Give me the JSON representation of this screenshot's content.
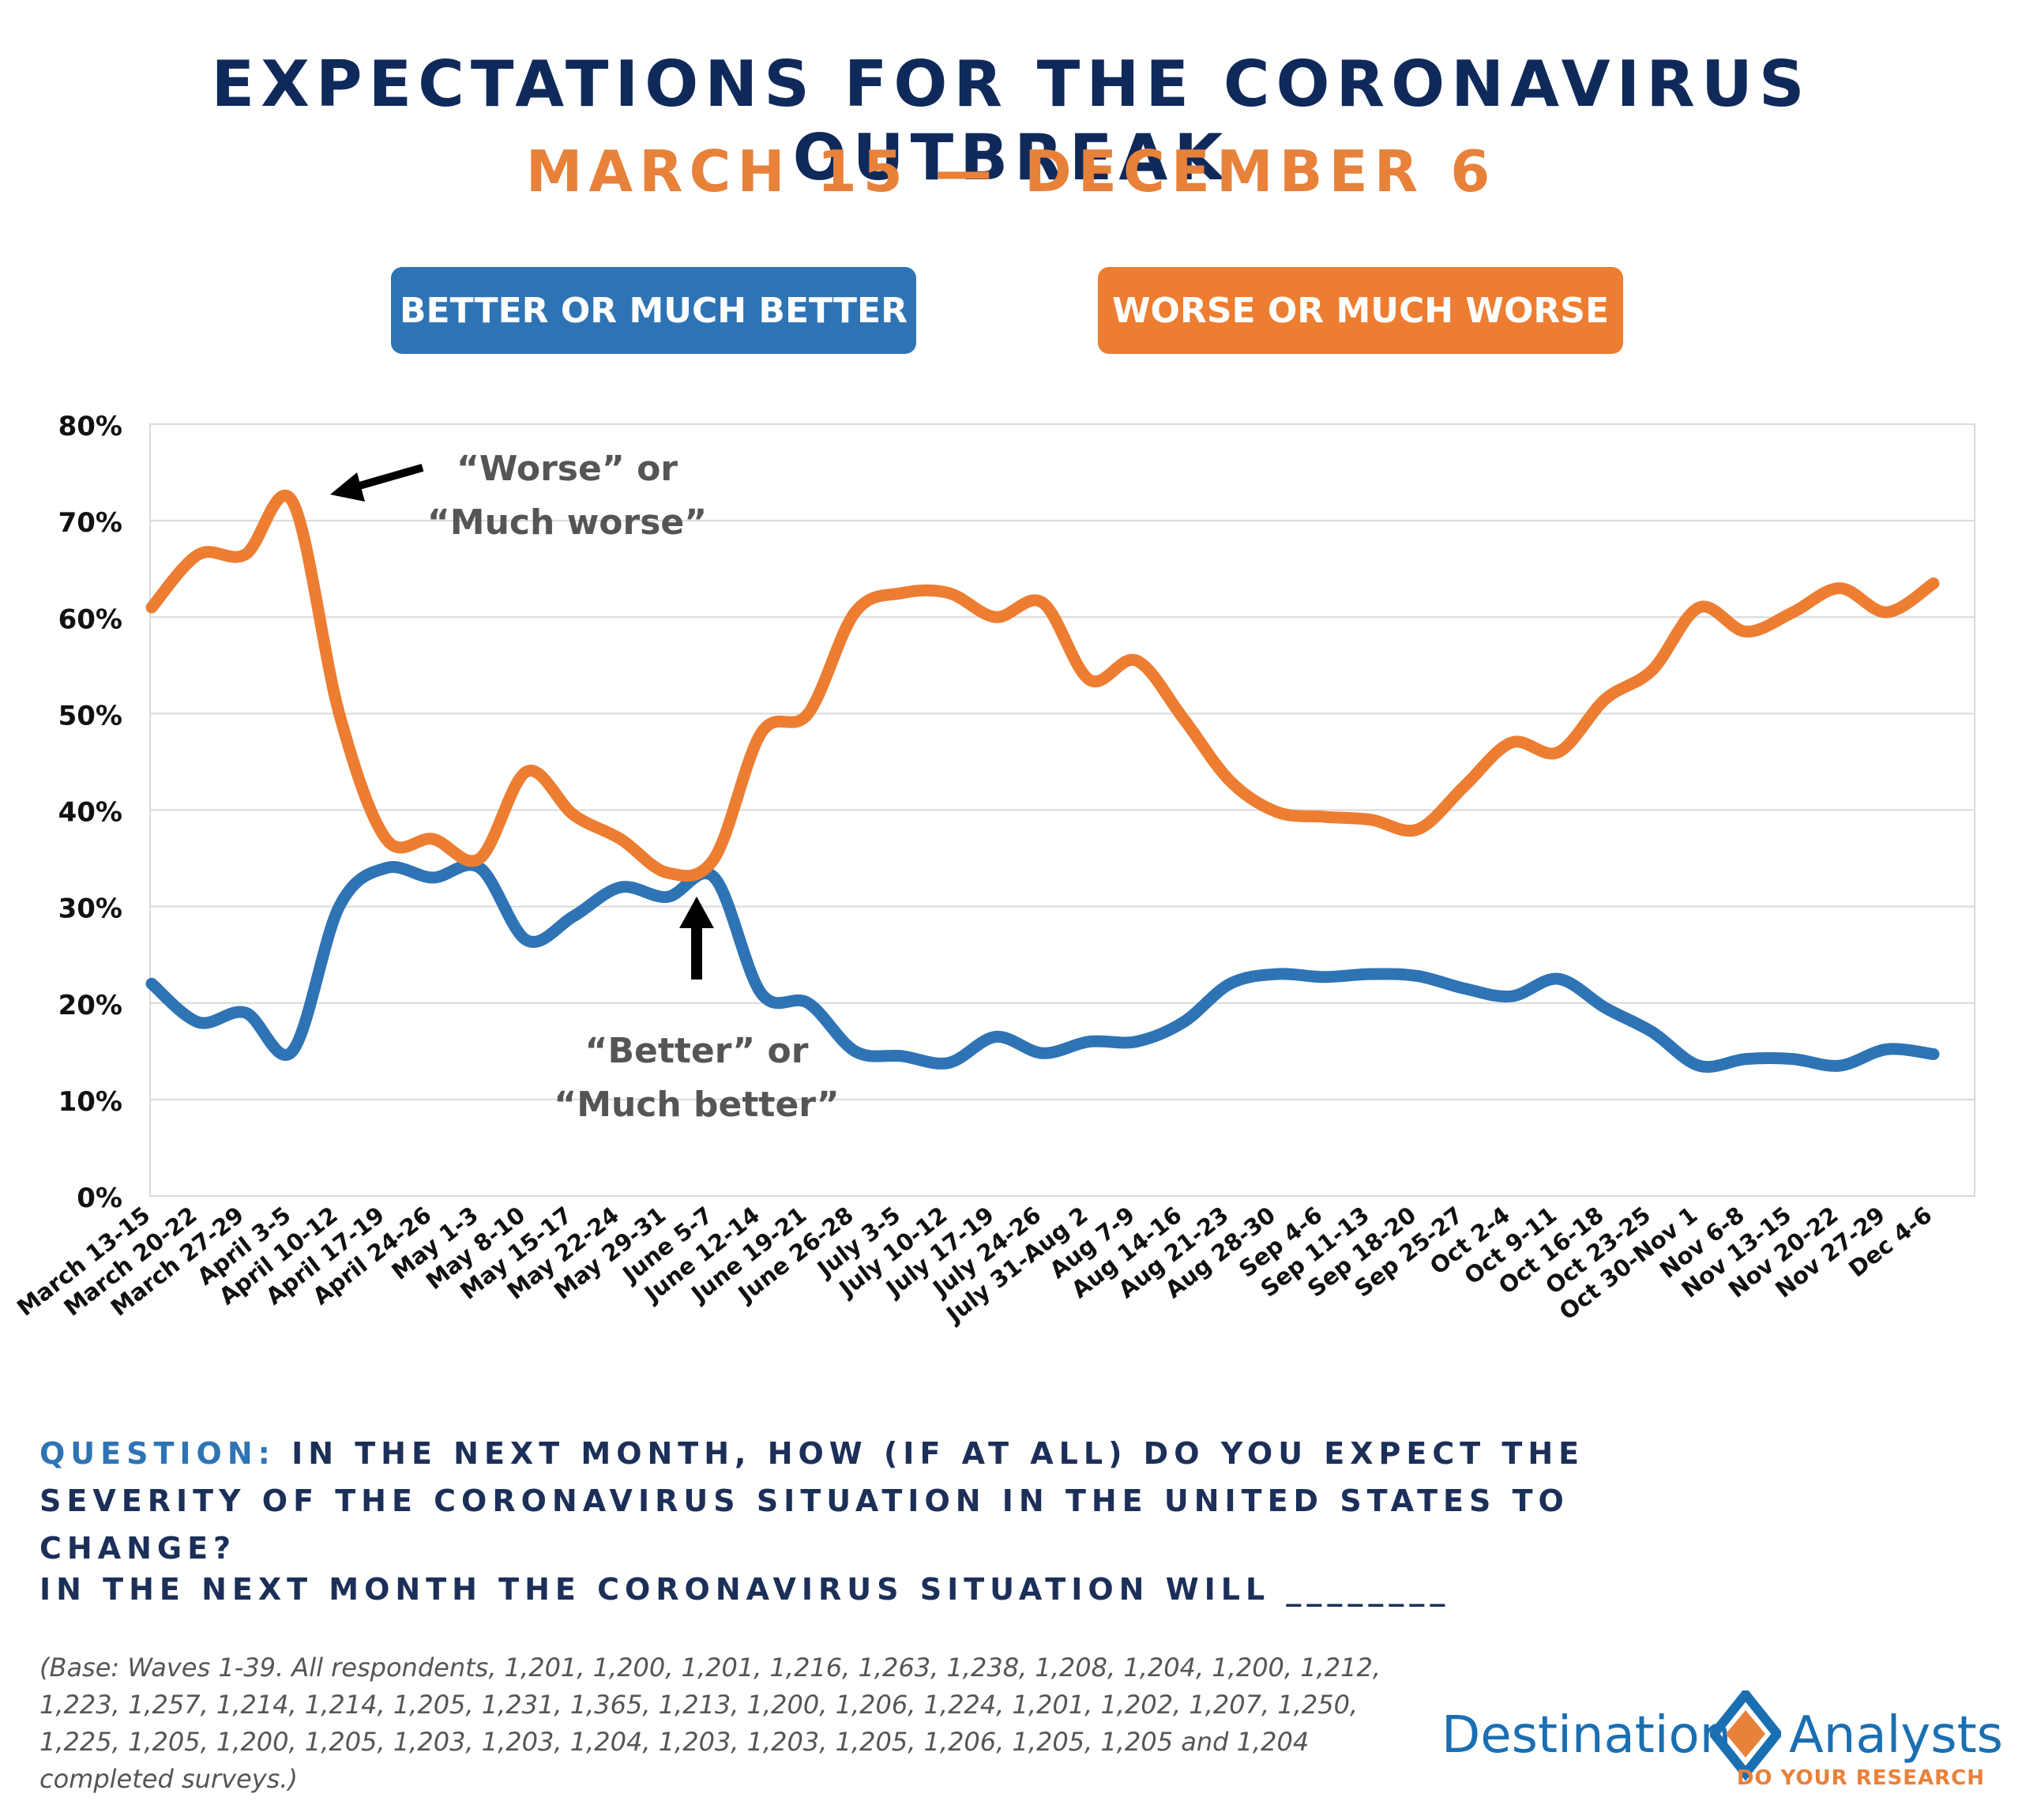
{
  "header": {
    "title": "EXPECTATIONS FOR THE CORONAVIRUS OUTBREAK",
    "subtitle": "MARCH 15 — DECEMBER 6"
  },
  "legend": {
    "better_label": "BETTER OR MUCH BETTER",
    "worse_label": "WORSE OR MUCH WORSE"
  },
  "colors": {
    "better": "#2e74b5",
    "worse": "#ed7d31",
    "title": "#0f2a5a",
    "subtitle": "#e8813a"
  },
  "annotations": {
    "worse_line1": "“Worse” or",
    "worse_line2": "“Much worse”",
    "better_line1": "“Better” or",
    "better_line2": "“Much better”"
  },
  "chart_data": {
    "type": "line",
    "ylim": [
      0,
      80
    ],
    "yticks": [
      "0%",
      "10%",
      "20%",
      "30%",
      "40%",
      "50%",
      "60%",
      "70%",
      "80%"
    ],
    "categories": [
      "March 13-15",
      "March 20-22",
      "March 27-29",
      "April 3-5",
      "April 10-12",
      "April 17-19",
      "April 24-26",
      "May 1-3",
      "May 8-10",
      "May 15-17",
      "May 22-24",
      "May 29-31",
      "June 5-7",
      "June 12-14",
      "June 19-21",
      "June 26-28",
      "July 3-5",
      "July 10-12",
      "July 17-19",
      "July 24-26",
      "July 31-Aug 2",
      "Aug 7-9",
      "Aug 14-16",
      "Aug 21-23",
      "Aug 28-30",
      "Sep 4-6",
      "Sep 11-13",
      "Sep 18-20",
      "Sep 25-27",
      "Oct 2-4",
      "Oct 9-11",
      "Oct 16-18",
      "Oct 23-25",
      "Oct 30-Nov 1",
      "Nov 6-8",
      "Nov 13-15",
      "Nov 20-22",
      "Nov 27-29",
      "Dec 4-6"
    ],
    "series": [
      {
        "name": "BETTER OR MUCH BETTER",
        "values": [
          22,
          18,
          19,
          15,
          30,
          34,
          33,
          34,
          26.5,
          29,
          32,
          31,
          33,
          21,
          20,
          15,
          14.5,
          13.8,
          16.5,
          14.8,
          16,
          16,
          18,
          22,
          23,
          22.7,
          23,
          22.8,
          21.5,
          20.7,
          22.5,
          19.5,
          17,
          13.5,
          14.2,
          14.2,
          13.5,
          15.2,
          14.7
        ]
      },
      {
        "name": "WORSE OR MUCH WORSE",
        "values": [
          61,
          66.5,
          66.5,
          72,
          50,
          37,
          37,
          35,
          44,
          39.5,
          37,
          33.5,
          35,
          48,
          50,
          60.5,
          62.5,
          62.5,
          60,
          61.5,
          53.5,
          55.5,
          49.5,
          43,
          39.8,
          39.3,
          39,
          38,
          42.5,
          47,
          46,
          51.5,
          54.5,
          61,
          58.5,
          60.5,
          63,
          60.5,
          63.5
        ]
      }
    ]
  },
  "footer": {
    "question_label": "QUESTION:",
    "question_text": " IN THE NEXT MONTH, HOW (IF AT ALL) DO YOU EXPECT THE SEVERITY OF THE CORONAVIRUS SITUATION IN THE UNITED STATES TO CHANGE?",
    "blank_statement": "IN THE NEXT MONTH THE CORONAVIRUS SITUATION WILL ________",
    "base_note": "(Base: Waves 1-39. All respondents, 1,201, 1,200, 1,201, 1,216, 1,263, 1,238, 1,208, 1,204, 1,200, 1,212, 1,223, 1,257, 1,214, 1,214, 1,205, 1,231, 1,365, 1,213, 1,200, 1,206, 1,224, 1,201, 1,202, 1,207, 1,250, 1,225, 1,205, 1,200, 1,205, 1,203, 1,203, 1,204, 1,203, 1,203, 1,205, 1,206, 1,205, 1,205 and 1,204 completed surveys.)"
  },
  "logo": {
    "word1": "Destination",
    "word2": "Analysts",
    "tagline": "DO YOUR RESEARCH"
  }
}
